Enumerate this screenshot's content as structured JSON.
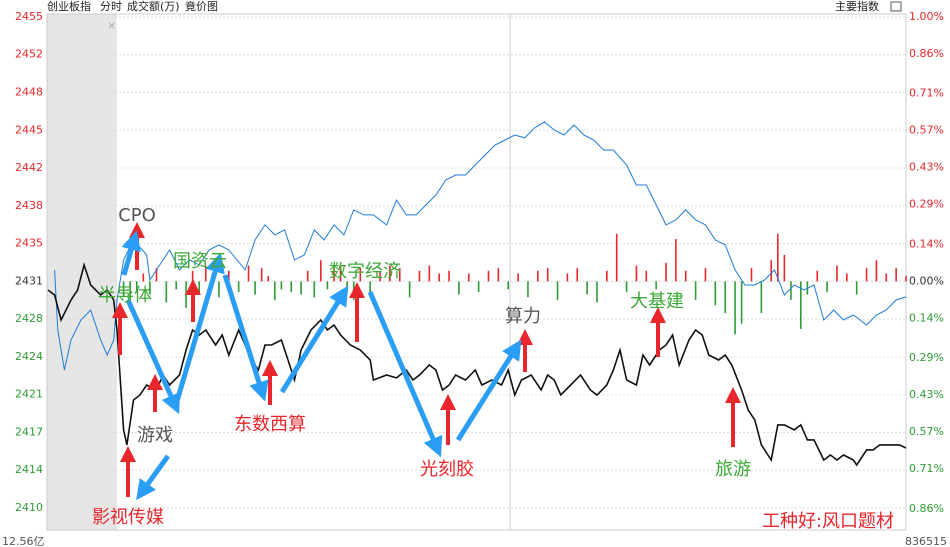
{
  "chart_data": {
    "type": "line",
    "title": "创业板指",
    "tabs": [
      "分时",
      "成交额(万)",
      "竟价图"
    ],
    "menu": "主要指数",
    "footer_left": "12.56亿",
    "footer_right": "836515",
    "grid": true,
    "xlim": [
      -21.3,
      240
    ],
    "ylim": [
      2408.24,
      2456.05
    ],
    "y2lim": [
      -0.94,
      1.026
    ],
    "yticks": [
      {
        "value": 2455.41,
        "label": "2455"
      },
      {
        "value": 2451.94,
        "label": "2452"
      },
      {
        "value": 2448.46,
        "label": "2448"
      },
      {
        "value": 2444.99,
        "label": "2445"
      },
      {
        "value": 2441.52,
        "label": "2442"
      },
      {
        "value": 2438.05,
        "label": "2438"
      },
      {
        "value": 2434.57,
        "label": "2435"
      },
      {
        "value": 2431.1,
        "label": "2431"
      },
      {
        "value": 2427.63,
        "label": "2428"
      },
      {
        "value": 2424.15,
        "label": "2424"
      },
      {
        "value": 2420.68,
        "label": "2421"
      },
      {
        "value": 2417.21,
        "label": "2417"
      },
      {
        "value": 2413.74,
        "label": "2414"
      },
      {
        "value": 2410.26,
        "label": "2410"
      }
    ],
    "y2ticks": [
      {
        "value": 1.0,
        "label": "1.00%"
      },
      {
        "value": 0.86,
        "label": "0.86%"
      },
      {
        "value": 0.71,
        "label": "0.71%"
      },
      {
        "value": 0.57,
        "label": "0.57%"
      },
      {
        "value": 0.43,
        "label": "0.43%"
      },
      {
        "value": 0.29,
        "label": "0.29%"
      },
      {
        "value": 0.14,
        "label": "0.14%"
      },
      {
        "value": 0,
        "label": "0.00%"
      },
      {
        "value": -0.14,
        "label": "0.14%"
      },
      {
        "value": -0.29,
        "label": "0.29%"
      },
      {
        "value": -0.43,
        "label": "0.43%"
      },
      {
        "value": -0.57,
        "label": "0.57%"
      },
      {
        "value": -0.71,
        "label": "0.71%"
      },
      {
        "value": -0.86,
        "label": "0.86%"
      }
    ],
    "up_color": "#e8262b",
    "down_color": "#2e9b35",
    "flat_color": "#333333",
    "series": [
      {
        "color": "#111111",
        "x": [
          -21,
          -19,
          -17,
          -14,
          -12,
          -10,
          -8,
          -5,
          -3,
          -1,
          0,
          1,
          2,
          3,
          5,
          7,
          9,
          12,
          14,
          16,
          19,
          21,
          23,
          25,
          27,
          30,
          32,
          34,
          37,
          39,
          41,
          43,
          45,
          47,
          50,
          52,
          54,
          56,
          59,
          62,
          64,
          66,
          68,
          71,
          74,
          77,
          78,
          82,
          85,
          88,
          90,
          92,
          95,
          97,
          99,
          101,
          103,
          106,
          109,
          111,
          114,
          117,
          119,
          121,
          123,
          126,
          129,
          131,
          133,
          135,
          138,
          141,
          144,
          146,
          149,
          151,
          153,
          155,
          158,
          160,
          162,
          165,
          167,
          169,
          171,
          174,
          176,
          178,
          180,
          183,
          185,
          187,
          190,
          192,
          194,
          196,
          199,
          201,
          203,
          206,
          208,
          210,
          212,
          215,
          217,
          219,
          221,
          224,
          225,
          228,
          230,
          232,
          235,
          238,
          240
        ],
        "values": [
          2430.31,
          2429.85,
          2427.55,
          2429.39,
          2430.31,
          2432.61,
          2430.77,
          2429.85,
          2430.31,
          2429.39,
          2426.63,
          2422.03,
          2417.44,
          2416.06,
          2420.19,
          2420.65,
          2421.57,
          2421.11,
          2422.49,
          2421.57,
          2422.49,
          2424.79,
          2426.63,
          2426.17,
          2426.63,
          2425.25,
          2426.17,
          2424.33,
          2426.63,
          2425.25,
          2423.87,
          2422.95,
          2425.25,
          2425.25,
          2425.71,
          2423.87,
          2422.03,
          2424.79,
          2426.63,
          2427.55,
          2426.63,
          2427.09,
          2426.17,
          2425.25,
          2424.79,
          2423.87,
          2422.03,
          2422.49,
          2422.22,
          2422.95,
          2422.03,
          2422.49,
          2423.41,
          2422.95,
          2421.11,
          2421.57,
          2422.49,
          2422.03,
          2422.95,
          2421.57,
          2422.03,
          2421.57,
          2422.95,
          2420.65,
          2422.03,
          2422.49,
          2421.11,
          2422.49,
          2422.03,
          2420.65,
          2421.57,
          2422.49,
          2421.11,
          2420.65,
          2421.57,
          2422.95,
          2424.79,
          2422.03,
          2421.57,
          2424.33,
          2423.41,
          2424.79,
          2425.25,
          2426.17,
          2423.41,
          2425.71,
          2426.63,
          2426.17,
          2424.33,
          2423.87,
          2424.33,
          2423.41,
          2421.11,
          2419.27,
          2418.36,
          2416.06,
          2414.68,
          2417.9,
          2417.9,
          2417.44,
          2417.9,
          2416.52,
          2416.52,
          2414.68,
          2415.14,
          2414.68,
          2415.14,
          2414.68,
          2414.22,
          2415.6,
          2415.6,
          2416.06,
          2416.06,
          2416.06,
          2415.78
        ]
      },
      {
        "color": "#1f7bd6",
        "x": [
          -19,
          -18,
          -16,
          -14,
          -11,
          -8,
          -5,
          -3,
          -1,
          0,
          2,
          5,
          9,
          10,
          13,
          16,
          19,
          22,
          25,
          28,
          31,
          34,
          39,
          42,
          45,
          48,
          51,
          54,
          57,
          60,
          63,
          66,
          69,
          72,
          75,
          78,
          82,
          85,
          88,
          91,
          94,
          97,
          100,
          103,
          106,
          109,
          112,
          115,
          118,
          121,
          124,
          127,
          130,
          133,
          136,
          139,
          142,
          145,
          148,
          151,
          155,
          158,
          161,
          164,
          167,
          170,
          173,
          176,
          179,
          182,
          185,
          188,
          191,
          194,
          197,
          200,
          203,
          206,
          209,
          212,
          215,
          218,
          221,
          224,
          228,
          231,
          234,
          237,
          240
        ],
        "values": [
          2432.15,
          2426.63,
          2422.95,
          2425.71,
          2427.55,
          2428.47,
          2425.71,
          2424.33,
          2425.71,
          2429.39,
          2433.07,
          2434.91,
          2433.53,
          2431.23,
          2432.61,
          2433.99,
          2432.15,
          2433.07,
          2432.61,
          2433.99,
          2434.45,
          2433.99,
          2432.15,
          2434.91,
          2436.29,
          2435.37,
          2435.83,
          2433.07,
          2433.53,
          2435.83,
          2434.91,
          2436.29,
          2435.37,
          2437.67,
          2437.21,
          2437.21,
          2436.29,
          2438.58,
          2437.21,
          2437.21,
          2438.13,
          2439.04,
          2440.42,
          2440.88,
          2440.88,
          2441.8,
          2442.72,
          2443.64,
          2444.1,
          2444.56,
          2444.29,
          2445.2,
          2445.76,
          2445.02,
          2444.56,
          2445.48,
          2444.56,
          2444.1,
          2443.18,
          2443.18,
          2441.8,
          2439.96,
          2439.96,
          2438.13,
          2436.29,
          2436.75,
          2437.67,
          2436.75,
          2436.29,
          2434.91,
          2434.45,
          2432.15,
          2430.77,
          2430.77,
          2431.23,
          2432.15,
          2429.85,
          2430.77,
          2430.31,
          2430.77,
          2427.55,
          2428.47,
          2427.55,
          2428.01,
          2427.09,
          2428.01,
          2428.47,
          2429.39,
          2429.67
        ]
      }
    ],
    "bars": {
      "axis": "y2",
      "x": [
        2,
        4,
        6,
        8,
        10,
        12,
        15,
        18,
        21,
        23,
        25,
        27,
        29,
        31,
        34,
        37,
        40,
        42,
        44,
        46,
        48,
        50,
        53,
        56,
        58,
        60,
        62,
        64,
        66,
        68,
        70,
        72,
        74,
        77,
        80,
        83,
        86,
        89,
        92,
        95,
        98,
        101,
        104,
        107,
        110,
        113,
        116,
        119,
        122,
        125,
        128,
        131,
        134,
        137,
        140,
        143,
        146,
        149,
        152,
        155,
        158,
        161,
        164,
        167,
        170,
        173,
        176,
        179,
        182,
        185,
        188,
        190,
        193,
        196,
        199,
        201,
        203,
        205,
        208,
        210,
        213,
        216,
        219,
        222,
        225,
        228,
        231,
        234,
        237,
        240
      ],
      "values": [
        -0.06,
        -0.09,
        -0.04,
        0.03,
        -0.05,
        0.05,
        -0.08,
        -0.03,
        -0.1,
        0.04,
        -0.05,
        0.06,
        0.03,
        -0.06,
        0.04,
        -0.04,
        0.06,
        -0.05,
        0.05,
        0.02,
        -0.07,
        -0.03,
        -0.04,
        -0.05,
        0.04,
        -0.06,
        0.08,
        -0.03,
        0.05,
        0.06,
        -0.04,
        -0.07,
        0.05,
        -0.05,
        0.04,
        0.06,
        0.05,
        -0.06,
        0.04,
        0.06,
        0.03,
        0.04,
        -0.05,
        0.03,
        -0.04,
        0.04,
        0.05,
        -0.03,
        0.03,
        -0.06,
        0.04,
        0.05,
        -0.07,
        0.03,
        0.05,
        -0.05,
        -0.08,
        0.04,
        0.18,
        -0.04,
        0.06,
        0.04,
        -0.03,
        0.07,
        0.16,
        0.04,
        -0.07,
        0.05,
        -0.09,
        -0.12,
        -0.2,
        -0.16,
        0.05,
        -0.12,
        0.08,
        0.18,
        0.1,
        -0.07,
        -0.18,
        -0.05,
        0.04,
        -0.04,
        0.06,
        0.03,
        -0.05,
        0.05,
        0.08,
        0.03,
        0.05,
        0.02
      ]
    },
    "annotations": [
      {
        "text": "CPO",
        "color": "#555555"
      },
      {
        "text": "半导体",
        "color": "#3aa935"
      },
      {
        "text": "国资云",
        "color": "#3aa935"
      },
      {
        "text": "数字经济",
        "color": "#3aa935"
      },
      {
        "text": "算力",
        "color": "#555555"
      },
      {
        "text": "大基建",
        "color": "#3aa935"
      },
      {
        "text": "游戏",
        "color": "#555555"
      },
      {
        "text": "东数西算",
        "color": "#e8262b"
      },
      {
        "text": "光刻胶",
        "color": "#e8262b"
      },
      {
        "text": "影视传媒",
        "color": "#e8262b"
      },
      {
        "text": "旅游",
        "color": "#3aa935"
      },
      {
        "text": "工种好:风口题材",
        "color": "#e8262b"
      }
    ]
  }
}
